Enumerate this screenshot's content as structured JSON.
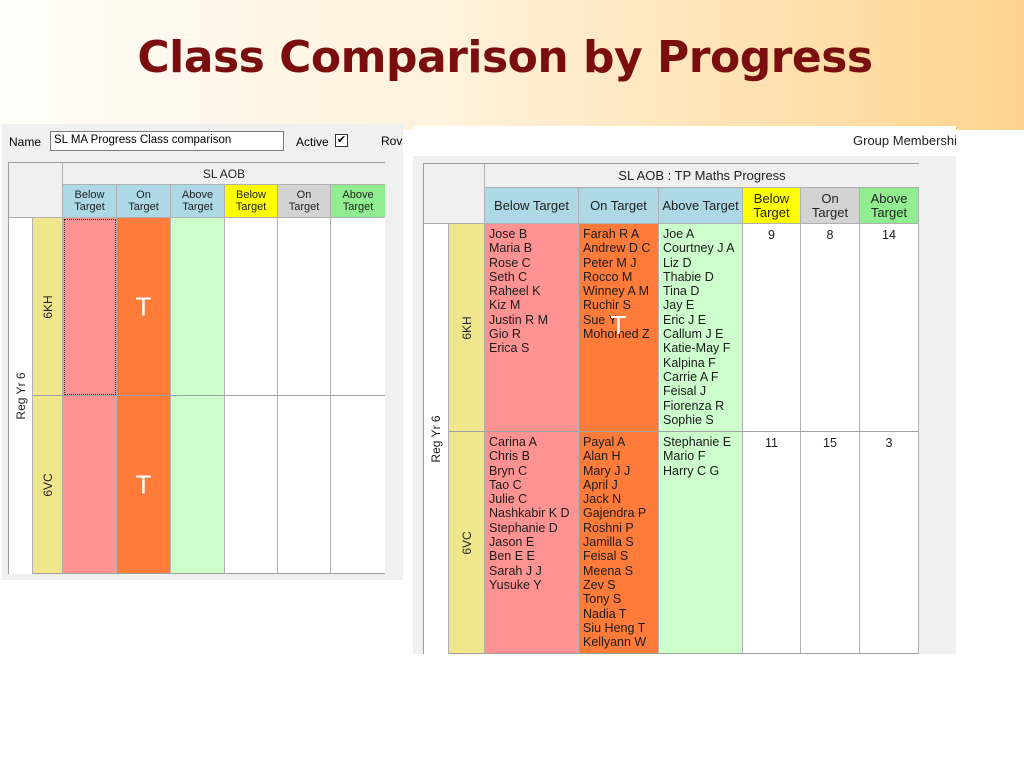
{
  "slide": {
    "title": "Class Comparison by Progress"
  },
  "colors": {
    "below": "#ff9393",
    "on": "#ff7b3a",
    "above": "#ccffcc",
    "below_hdr": "#add8e6",
    "on_hdr": "#add8e6",
    "above_hdr": "#add8e6",
    "count_below_hdr": "#ffff00",
    "count_on_hdr": "#d3d3d3",
    "count_above_hdr": "#90ee90",
    "class_col": "#f0e68c",
    "title": "#7a0e0e"
  },
  "screen1": {
    "name_label": "Name",
    "name_value": "SL MA Progress Class comparison",
    "active_label": "Active",
    "active_checked": true,
    "check_mark": "✔",
    "row_label": "Rov",
    "group_header": "SL AOB",
    "columns": [
      {
        "line1": "Below",
        "line2": "Target"
      },
      {
        "line1": "On",
        "line2": "Target"
      },
      {
        "line1": "Above",
        "line2": "Target"
      },
      {
        "line1": "Below",
        "line2": "Target"
      },
      {
        "line1": "On",
        "line2": "Target"
      },
      {
        "line1": "Above",
        "line2": "Target"
      }
    ],
    "row_group": "Reg Yr 6",
    "rows": [
      {
        "class": "6KH",
        "marker": "T"
      },
      {
        "class": "6VC",
        "marker": "T"
      }
    ]
  },
  "screen2": {
    "toolbar_text": "Group Membershi",
    "group_header": "SL AOB : TP Maths Progress",
    "columns": [
      "Below Target",
      "On Target",
      "Above Target"
    ],
    "count_columns": [
      {
        "line1": "Below",
        "line2": "Target"
      },
      {
        "line1": "On",
        "line2": "Target"
      },
      {
        "line1": "Above",
        "line2": "Target"
      }
    ],
    "row_group": "Reg Yr 6",
    "rows": [
      {
        "class": "6KH",
        "marker": "T",
        "below": [
          "Jose B",
          "Maria B",
          "Rose C",
          "Seth C",
          "Raheel K",
          "Kiz M",
          "Justin R M",
          "Gio R",
          "Erica S"
        ],
        "on": [
          "Farah R A",
          "Andrew D C",
          "Peter M J",
          "Rocco M",
          "Winney A M",
          "Ruchir S",
          "Sue Y",
          "Mohomed Z"
        ],
        "above": [
          "Joe A",
          "Courtney J A",
          "Liz D",
          "Thabie D",
          "Tina D",
          "Jay E",
          "Eric J E",
          "Callum J E",
          "Katie-May F",
          "Kalpina F",
          "Carrie A F",
          "Feisal J",
          "Fiorenza R",
          "Sophie S"
        ],
        "counts": [
          "9",
          "8",
          "14"
        ]
      },
      {
        "class": "6VC",
        "marker": "",
        "below": [
          "Carina A",
          "Chris B",
          "Bryn C",
          "Tao C",
          "Julie C",
          "Nashkabir K D",
          "Stephanie D",
          "Jason E",
          "Ben E E",
          "Sarah J J",
          "Yusuke Y"
        ],
        "on": [
          "Payal A",
          "Alan H",
          "Mary J J",
          "April J",
          "Jack N",
          "Gajendra P",
          "Roshni P",
          "Jamilla S",
          "Feisal S",
          "Meena S",
          "Zev S",
          "Tony S",
          "Nadia T",
          "Siu Heng T",
          "Kellyann W"
        ],
        "above": [
          "Stephanie E",
          "Mario F",
          "Harry C G"
        ],
        "counts": [
          "11",
          "15",
          "3"
        ]
      }
    ]
  }
}
